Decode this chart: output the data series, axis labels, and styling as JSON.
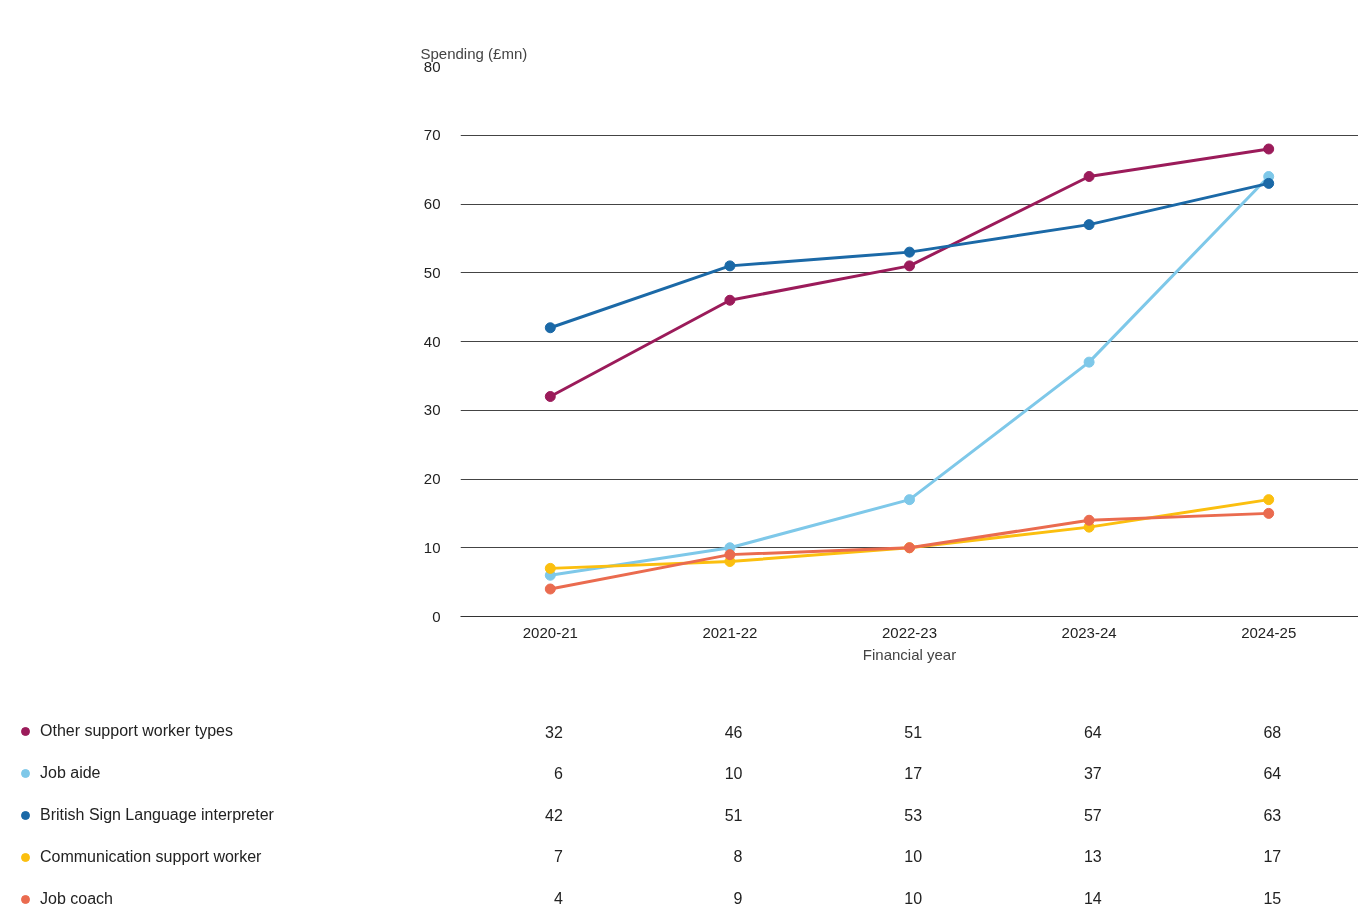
{
  "chart_data": {
    "type": "line",
    "ylabel": "Spending (£mn)",
    "xlabel": "Financial year",
    "categories": [
      "2020-21",
      "2021-22",
      "2022-23",
      "2023-24",
      "2024-25"
    ],
    "series": [
      {
        "name": "Other support worker types",
        "color": "#9b1b5a",
        "values": [
          32,
          46,
          51,
          64,
          68
        ]
      },
      {
        "name": "Job aide",
        "color": "#7ec8e9",
        "values": [
          6,
          10,
          17,
          37,
          64
        ]
      },
      {
        "name": "British Sign Language interpreter",
        "color": "#1b69a7",
        "values": [
          42,
          51,
          53,
          57,
          63
        ]
      },
      {
        "name": "Communication support worker",
        "color": "#fbbf0f",
        "values": [
          7,
          8,
          10,
          13,
          17
        ]
      },
      {
        "name": "Job coach",
        "color": "#ea6b4f",
        "values": [
          4,
          9,
          10,
          14,
          15
        ]
      }
    ],
    "ylim": [
      0,
      80
    ],
    "yticks": [
      0,
      10,
      20,
      30,
      40,
      50,
      60,
      70,
      80
    ],
    "grid": "y",
    "marker": "circle",
    "line_style": "solid",
    "legend": "bottom",
    "data_labels": true
  }
}
